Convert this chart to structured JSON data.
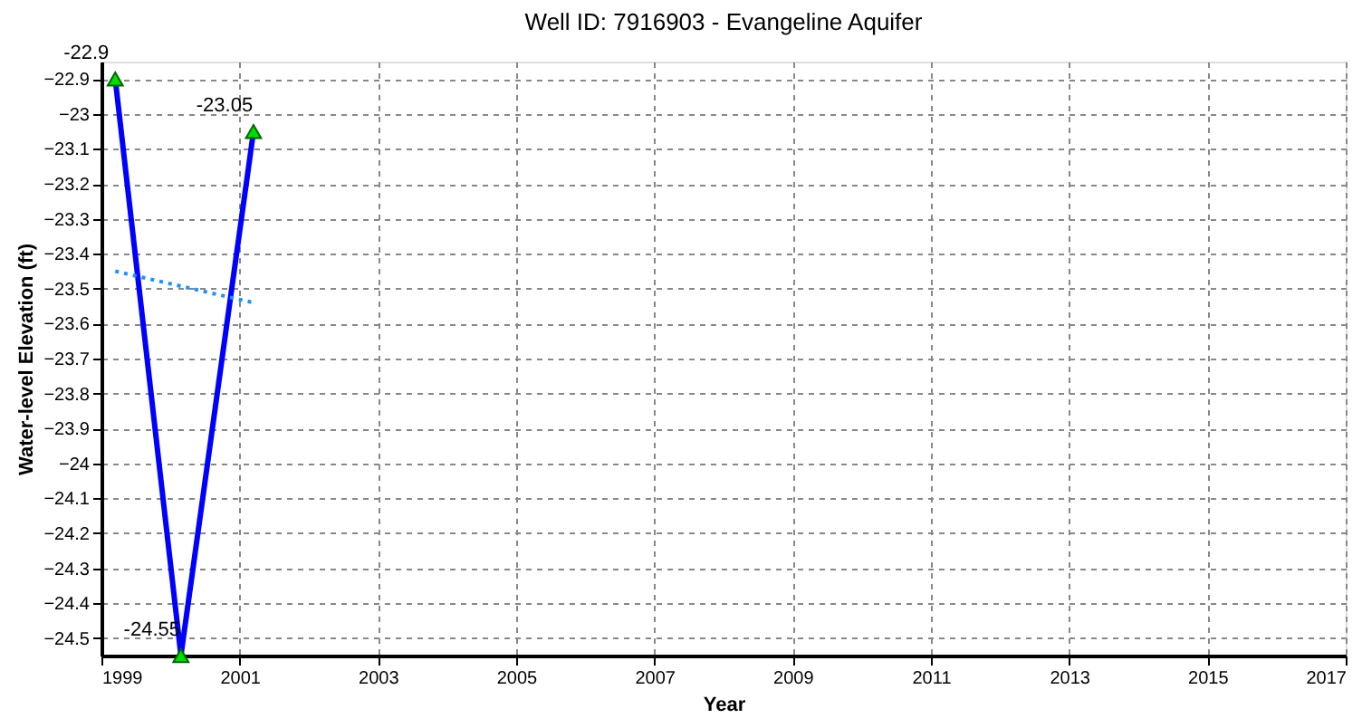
{
  "chart_data": {
    "type": "line",
    "title": "Well ID: 7916903 - Evangeline Aquifer",
    "xlabel": "Year",
    "ylabel": "Water-level Elevation (ft)",
    "series": [
      {
        "color": "#0000ff",
        "x": [
          1999.2,
          2000.15,
          2001.2
        ],
        "values": [
          -22.9,
          -24.55,
          -23.05
        ],
        "marker": "triangle",
        "line_style": "solid",
        "data_labels": true
      },
      {
        "type": "line",
        "color": "#1e90ff",
        "x": [
          1999.2,
          2001.2
        ],
        "values": [
          -23.45,
          -23.54
        ],
        "marker": "none",
        "line_style": "dotted"
      }
    ],
    "xlim": [
      1999,
      2017
    ],
    "xticks": [
      1999,
      2001,
      2003,
      2005,
      2007,
      2009,
      2011,
      2013,
      2015,
      2017
    ],
    "ylim": [
      -24.55,
      -22.85
    ],
    "yticks": [
      -24.5,
      -24.4,
      -24.3,
      -24.2,
      -24.1,
      -24,
      -23.9,
      -23.8,
      -23.7,
      -23.6,
      -23.5,
      -23.4,
      -23.3,
      -23.2,
      -23.1,
      -23,
      -22.9
    ],
    "grid": true
  }
}
